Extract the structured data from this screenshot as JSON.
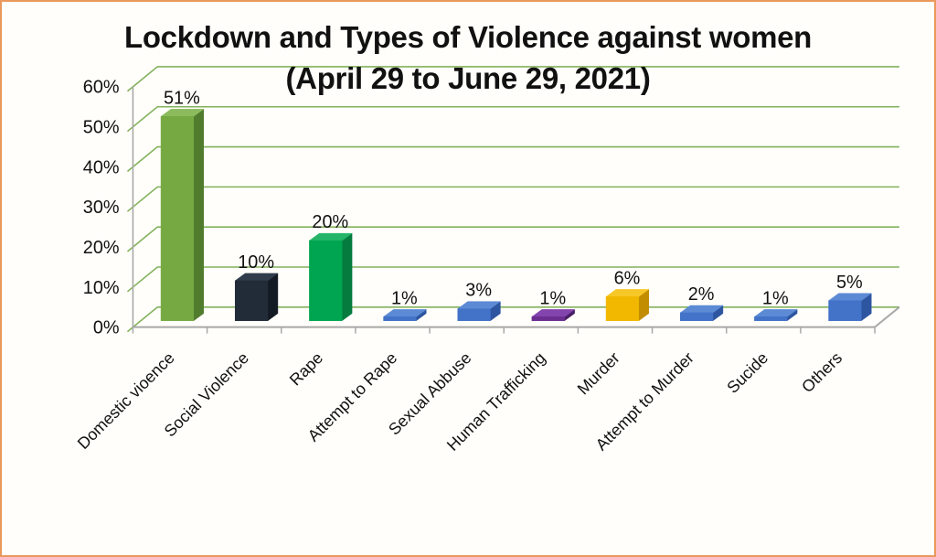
{
  "frame": {
    "border_color": "#E9995C",
    "background_color": "#fffefa"
  },
  "chart_data": {
    "type": "bar",
    "style": "3d-column",
    "title": "Lockdown and Types of Violence against women (April 29 to June 29, 2021)",
    "title_lines": [
      "Lockdown and Types of Violence against women",
      "(April 29 to June 29, 2021)"
    ],
    "categories": [
      "Domestic vioence",
      "Social Violence",
      "Rape",
      "Attempt to Rape",
      "Sexual Abbuse",
      "Human Trafficking",
      "Murder",
      "Attempt to Murder",
      "Sucide",
      "Others"
    ],
    "values": [
      51,
      10,
      20,
      1,
      3,
      1,
      6,
      2,
      1,
      5
    ],
    "value_labels": [
      "51%",
      "10%",
      "20%",
      "1%",
      "3%",
      "1%",
      "6%",
      "2%",
      "1%",
      "5%"
    ],
    "ytick_labels": [
      "0%",
      "10%",
      "20%",
      "30%",
      "40%",
      "50%",
      "60%"
    ],
    "ylim": [
      0,
      60
    ],
    "y_step": 10,
    "xlabel": "",
    "ylabel": "",
    "grid": true,
    "legend": "none",
    "colors": {
      "grid": "#83B15C",
      "axis": "#A8A8A8",
      "text": "#111111",
      "bars": [
        {
          "front": "#76A942",
          "side": "#527C2D",
          "top": "#8CBB5E"
        },
        {
          "front": "#222B38",
          "side": "#141A23",
          "top": "#303C4C"
        },
        {
          "front": "#00A551",
          "side": "#057B3E",
          "top": "#26B568"
        },
        {
          "front": "#4273C8",
          "side": "#2D55A0",
          "top": "#5C8AD5"
        },
        {
          "front": "#4273C8",
          "side": "#2D55A0",
          "top": "#5C8AD5"
        },
        {
          "front": "#6C2D91",
          "side": "#4A1E65",
          "top": "#8444AE"
        },
        {
          "front": "#F2B800",
          "side": "#C28E00",
          "top": "#F6C726"
        },
        {
          "front": "#4273C8",
          "side": "#2D55A0",
          "top": "#5C8AD5"
        },
        {
          "front": "#4273C8",
          "side": "#2D55A0",
          "top": "#5C8AD5"
        },
        {
          "front": "#4273C8",
          "side": "#2D55A0",
          "top": "#5C8AD5"
        }
      ]
    }
  }
}
